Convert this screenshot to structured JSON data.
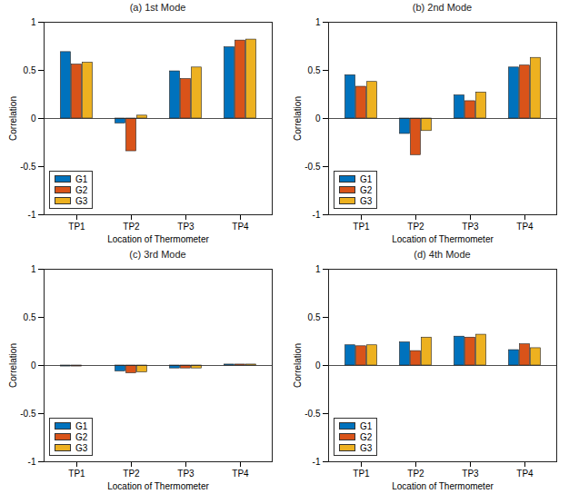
{
  "chart_data": [
    {
      "type": "bar",
      "title": "(a) 1st Mode",
      "x_label": "Location of Thermometer",
      "y_label": "Correlation",
      "categories": [
        "TP1",
        "TP2",
        "TP3",
        "TP4"
      ],
      "series": [
        {
          "name": "G1",
          "color": "#0072BD",
          "values": [
            0.69,
            -0.05,
            0.49,
            0.74
          ]
        },
        {
          "name": "G2",
          "color": "#D95319",
          "values": [
            0.56,
            -0.34,
            0.41,
            0.81
          ]
        },
        {
          "name": "G3",
          "color": "#EDB120",
          "values": [
            0.58,
            0.03,
            0.53,
            0.82
          ]
        }
      ],
      "ylim": [
        -1,
        1
      ],
      "yticks": [
        -1,
        -0.5,
        0,
        0.5,
        1
      ],
      "legend": "southwest"
    },
    {
      "type": "bar",
      "title": "(b) 2nd Mode",
      "x_label": "Location of Thermometer",
      "y_label": "Correlation",
      "categories": [
        "TP1",
        "TP2",
        "TP3",
        "TP4"
      ],
      "series": [
        {
          "name": "G1",
          "color": "#0072BD",
          "values": [
            0.45,
            -0.16,
            0.24,
            0.53
          ]
        },
        {
          "name": "G2",
          "color": "#D95319",
          "values": [
            0.33,
            -0.38,
            0.18,
            0.55
          ]
        },
        {
          "name": "G3",
          "color": "#EDB120",
          "values": [
            0.38,
            -0.13,
            0.27,
            0.63
          ]
        }
      ],
      "ylim": [
        -1,
        1
      ],
      "yticks": [
        -1,
        -0.5,
        0,
        0.5,
        1
      ],
      "legend": "southwest"
    },
    {
      "type": "bar",
      "title": "(c) 3rd Mode",
      "x_label": "Location of Thermometer",
      "y_label": "Correlation",
      "categories": [
        "TP1",
        "TP2",
        "TP3",
        "TP4"
      ],
      "series": [
        {
          "name": "G1",
          "color": "#0072BD",
          "values": [
            -0.01,
            -0.06,
            -0.03,
            0.01
          ]
        },
        {
          "name": "G2",
          "color": "#D95319",
          "values": [
            -0.01,
            -0.08,
            -0.03,
            0.01
          ]
        },
        {
          "name": "G3",
          "color": "#EDB120",
          "values": [
            0.0,
            -0.07,
            -0.03,
            0.01
          ]
        }
      ],
      "ylim": [
        -1,
        1
      ],
      "yticks": [
        -1,
        -0.5,
        0,
        0.5,
        1
      ],
      "legend": "southwest"
    },
    {
      "type": "bar",
      "title": "(d) 4th Mode",
      "x_label": "Location of Thermometer",
      "y_label": "Correlation",
      "categories": [
        "TP1",
        "TP2",
        "TP3",
        "TP4"
      ],
      "series": [
        {
          "name": "G1",
          "color": "#0072BD",
          "values": [
            0.21,
            0.24,
            0.3,
            0.16
          ]
        },
        {
          "name": "G2",
          "color": "#D95319",
          "values": [
            0.2,
            0.15,
            0.29,
            0.22
          ]
        },
        {
          "name": "G3",
          "color": "#EDB120",
          "values": [
            0.21,
            0.29,
            0.32,
            0.18
          ]
        }
      ],
      "ylim": [
        -1,
        1
      ],
      "yticks": [
        -1,
        -0.5,
        0,
        0.5,
        1
      ],
      "legend": "southwest"
    }
  ]
}
